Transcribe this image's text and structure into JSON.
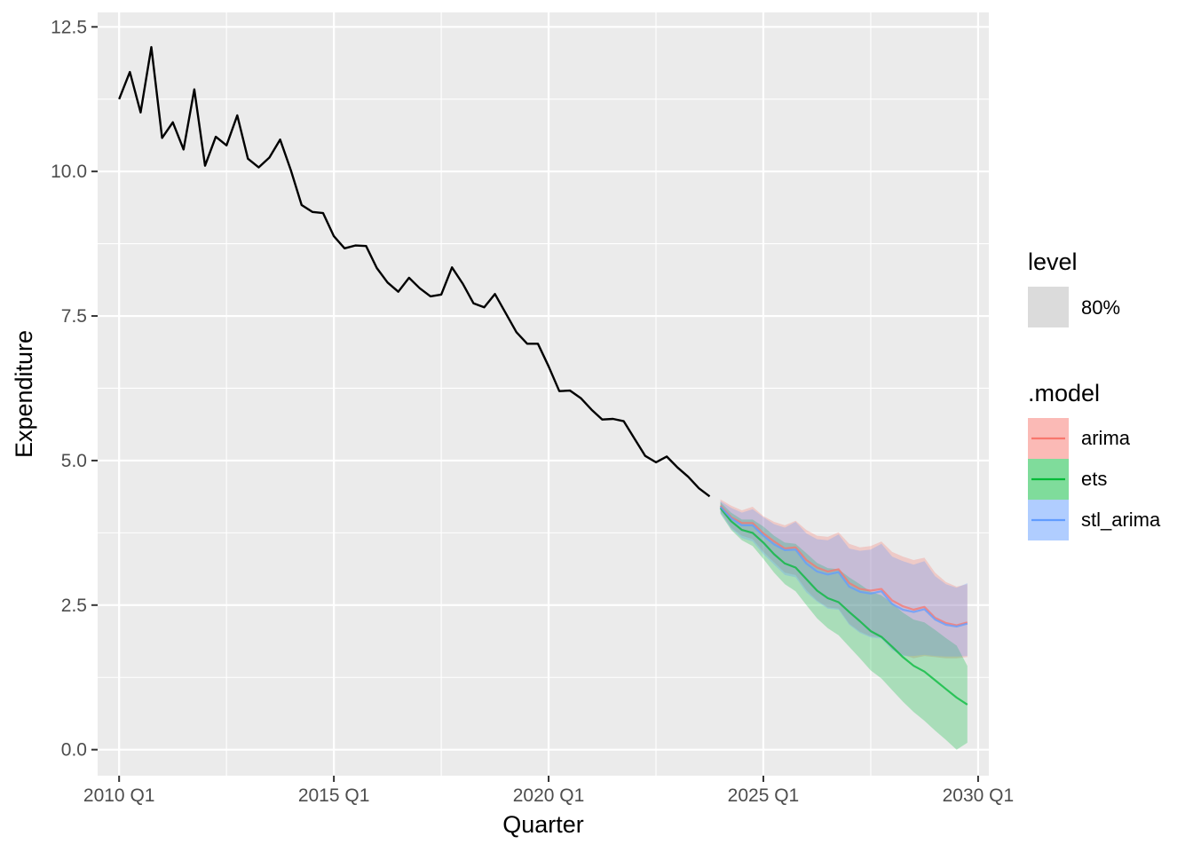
{
  "chart_data": {
    "type": "line",
    "xlabel": "Quarter",
    "ylabel": "Expenditure",
    "x_ticks": [
      "2010 Q1",
      "2015 Q1",
      "2020 Q1",
      "2025 Q1",
      "2030 Q1"
    ],
    "y_ticks": [
      "0.0",
      "2.5",
      "5.0",
      "7.5",
      "10.0",
      "12.5"
    ],
    "xlim": [
      "2009 Q3",
      "2030 Q2"
    ],
    "ylim": [
      -0.45,
      12.75
    ],
    "grid": true,
    "legend_position": "right",
    "background": "#EBEBEB",
    "history": {
      "start": "2010 Q1",
      "color": "#000000",
      "values": [
        11.25,
        11.72,
        11.02,
        12.15,
        10.58,
        10.85,
        10.38,
        11.42,
        10.1,
        10.6,
        10.45,
        10.97,
        10.22,
        10.07,
        10.24,
        10.55,
        10.02,
        9.42,
        9.3,
        9.28,
        8.88,
        8.67,
        8.72,
        8.71,
        8.33,
        8.08,
        7.92,
        8.16,
        7.98,
        7.84,
        7.87,
        8.34,
        8.06,
        7.72,
        7.65,
        7.88,
        7.55,
        7.22,
        7.02,
        7.02,
        6.63,
        6.2,
        6.21,
        6.08,
        5.88,
        5.71,
        5.72,
        5.68,
        5.38,
        5.08,
        4.97,
        5.07,
        4.88,
        4.72,
        4.52,
        4.38
      ]
    },
    "forecast_start": "2024 Q1",
    "series": [
      {
        "name": "arima",
        "color": "#F8766D",
        "values": [
          4.22,
          4.02,
          3.92,
          3.92,
          3.74,
          3.6,
          3.48,
          3.5,
          3.28,
          3.15,
          3.08,
          3.12,
          2.88,
          2.78,
          2.75,
          2.78,
          2.58,
          2.48,
          2.42,
          2.47,
          2.28,
          2.19,
          2.15,
          2.2
        ],
        "lower": [
          4.12,
          3.84,
          3.7,
          3.64,
          3.42,
          3.24,
          3.06,
          3.02,
          2.76,
          2.58,
          2.46,
          2.44,
          2.18,
          2.04,
          1.96,
          1.94,
          1.74,
          1.64,
          1.58,
          1.62,
          1.6,
          1.58,
          1.58,
          1.6
        ],
        "upper": [
          4.33,
          4.22,
          4.14,
          4.2,
          4.04,
          3.94,
          3.88,
          3.96,
          3.8,
          3.7,
          3.68,
          3.76,
          3.56,
          3.5,
          3.52,
          3.6,
          3.42,
          3.34,
          3.28,
          3.32,
          3.06,
          2.9,
          2.82,
          2.86
        ]
      },
      {
        "name": "ets",
        "color": "#00BA38",
        "values": [
          4.18,
          3.95,
          3.8,
          3.75,
          3.58,
          3.38,
          3.22,
          3.15,
          2.95,
          2.75,
          2.62,
          2.55,
          2.38,
          2.22,
          2.05,
          1.95,
          1.78,
          1.6,
          1.45,
          1.35,
          1.2,
          1.05,
          0.9,
          0.78
        ],
        "lower": [
          4.08,
          3.8,
          3.62,
          3.52,
          3.3,
          3.06,
          2.86,
          2.74,
          2.5,
          2.27,
          2.1,
          1.98,
          1.78,
          1.58,
          1.37,
          1.23,
          1.03,
          0.83,
          0.65,
          0.5,
          0.33,
          0.17,
          0.0,
          0.12
        ],
        "upper": [
          4.28,
          4.1,
          3.98,
          3.98,
          3.86,
          3.7,
          3.58,
          3.56,
          3.4,
          3.23,
          3.14,
          3.12,
          2.98,
          2.86,
          2.73,
          2.67,
          2.53,
          2.37,
          2.25,
          2.2,
          2.07,
          1.93,
          1.8,
          1.45
        ]
      },
      {
        "name": "stl_arima",
        "color": "#619CFF",
        "values": [
          4.2,
          4.0,
          3.88,
          3.88,
          3.7,
          3.55,
          3.45,
          3.46,
          3.22,
          3.08,
          3.03,
          3.07,
          2.82,
          2.73,
          2.7,
          2.74,
          2.52,
          2.42,
          2.38,
          2.43,
          2.25,
          2.16,
          2.13,
          2.18
        ],
        "lower": [
          4.1,
          3.82,
          3.66,
          3.6,
          3.38,
          3.2,
          3.02,
          2.98,
          2.72,
          2.56,
          2.44,
          2.42,
          2.16,
          2.02,
          1.94,
          1.92,
          1.72,
          1.62,
          1.62,
          1.64,
          1.62,
          1.61,
          1.61,
          1.62
        ],
        "upper": [
          4.3,
          4.18,
          4.1,
          4.16,
          4.02,
          3.9,
          3.84,
          3.94,
          3.74,
          3.64,
          3.62,
          3.72,
          3.48,
          3.44,
          3.46,
          3.56,
          3.34,
          3.26,
          3.2,
          3.26,
          3.0,
          2.86,
          2.8,
          2.88
        ]
      }
    ],
    "legend": {
      "level": {
        "title": "level",
        "items": [
          {
            "label": "80%",
            "color": "#DBDBDB"
          }
        ]
      },
      "model": {
        "title": ".model",
        "items": [
          {
            "label": "arima",
            "color": "#F8766D"
          },
          {
            "label": "ets",
            "color": "#00BA38"
          },
          {
            "label": "stl_arima",
            "color": "#619CFF"
          }
        ]
      }
    }
  }
}
